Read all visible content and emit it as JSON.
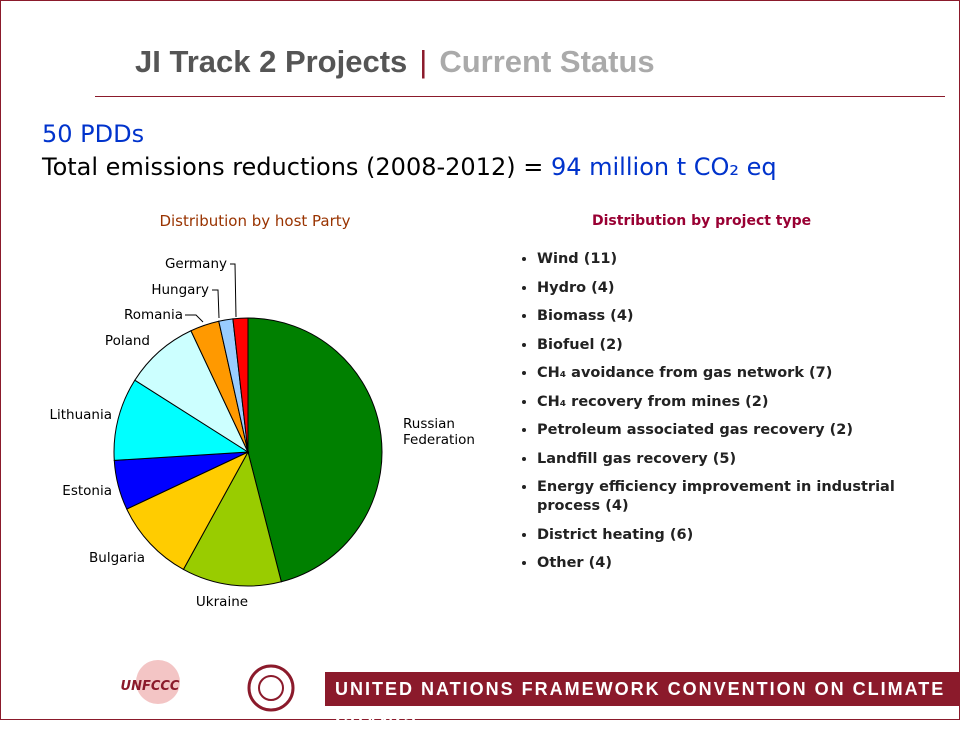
{
  "header": {
    "title": "JI Track 2 Projects",
    "section": "Current Status"
  },
  "summary": {
    "line1": "50 PDDs",
    "line2_text": "Total emissions reductions (2008-2012) = ",
    "line2_value": "94 million t CO₂ eq"
  },
  "chart_data": {
    "type": "pie",
    "title": "Distribution by host Party",
    "categories": [
      "Russian Federation",
      "Ukraine",
      "Bulgaria",
      "Estonia",
      "Lithuania",
      "Poland",
      "Romania",
      "Hungary",
      "Germany"
    ],
    "values": [
      46,
      12,
      10,
      6,
      10,
      9,
      3.5,
      1.7,
      1.8
    ],
    "colors": [
      "#008000",
      "#99cc00",
      "#ffcc00",
      "#0000ff",
      "#00ffff",
      "#ccffff",
      "#ff9900",
      "#99ccff",
      "#ff0000"
    ]
  },
  "project_types": {
    "title": "Distribution by project type",
    "items": [
      "Wind (11)",
      "Hydro (4)",
      "Biomass (4)",
      "Biofuel (2)",
      "CH₄ avoidance from gas network (7)",
      "CH₄ recovery from mines (2)",
      "Petroleum associated gas recovery (2)",
      "Landfill gas recovery (5)",
      "Energy efficiency improvement in industrial process (4)",
      "District heating (6)",
      "Other (4)"
    ]
  },
  "footer": {
    "logo": "UNFCCC",
    "banner": "UNITED NATIONS FRAMEWORK CONVENTION ON CLIMATE CHANGE"
  }
}
